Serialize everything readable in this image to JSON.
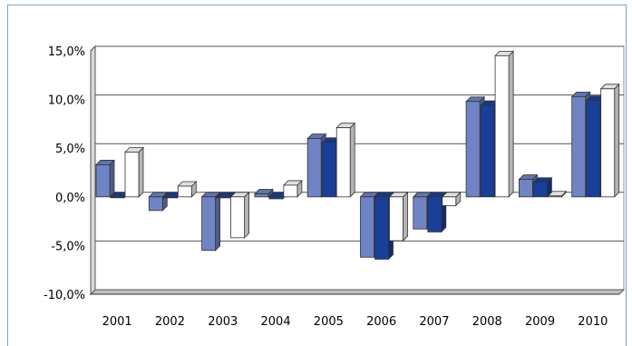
{
  "chart_data": {
    "type": "bar",
    "categories": [
      "2001",
      "2002",
      "2003",
      "2004",
      "2005",
      "2006",
      "2007",
      "2008",
      "2009",
      "2010"
    ],
    "series": [
      {
        "values": [
          3.3,
          -1.4,
          -5.5,
          0.3,
          6.0,
          -6.2,
          -3.3,
          9.8,
          1.8,
          10.3
        ],
        "color": "#6e84c4"
      },
      {
        "values": [
          0.0,
          -0.1,
          -0.1,
          -0.2,
          5.6,
          -6.4,
          -3.6,
          9.4,
          1.5,
          9.9
        ],
        "color": "#1a3f9a"
      },
      {
        "values": [
          4.6,
          1.1,
          -4.2,
          1.2,
          7.1,
          -4.5,
          -0.9,
          14.5,
          0.1,
          11.1
        ],
        "color": "#ffffff"
      }
    ],
    "y_ticks": [
      "15,0%",
      "10,0%",
      "5,0%",
      "0,0%",
      "-5,0%",
      "-10,0%"
    ],
    "y_tick_values": [
      15,
      10,
      5,
      0,
      -5,
      -10
    ],
    "ylim": [
      -10,
      15
    ],
    "grid": true,
    "legend": "none"
  }
}
